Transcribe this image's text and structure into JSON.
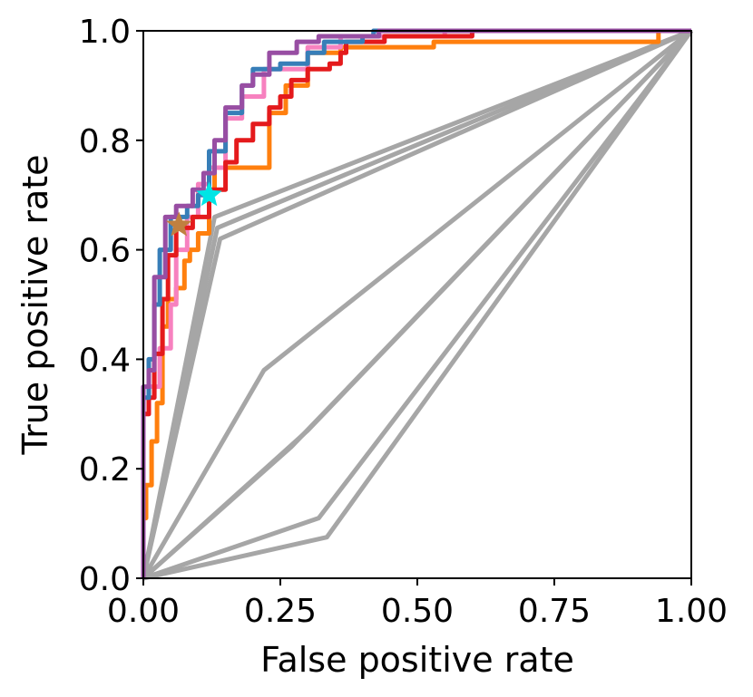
{
  "chart_data": {
    "type": "line",
    "title": "",
    "xlabel": "False positive rate",
    "ylabel": "True positive rate",
    "xlim": [
      0,
      1
    ],
    "ylim": [
      0,
      1
    ],
    "grid": false,
    "xticks": [
      0,
      0.25,
      0.5,
      0.75,
      1
    ],
    "xtick_labels": [
      "0.00",
      "0.25",
      "0.50",
      "0.75",
      "1.00"
    ],
    "yticks": [
      0,
      0.2,
      0.4,
      0.6,
      0.8,
      1
    ],
    "ytick_labels": [
      "0.0",
      "0.2",
      "0.4",
      "0.6",
      "0.8",
      "1.0"
    ],
    "series": [
      {
        "name": "gray-1",
        "color": "#a6a6a6",
        "x": [
          0,
          0.13,
          1
        ],
        "y": [
          0,
          0.66,
          1
        ]
      },
      {
        "name": "gray-2",
        "color": "#a6a6a6",
        "x": [
          0,
          0.135,
          1
        ],
        "y": [
          0,
          0.64,
          1
        ]
      },
      {
        "name": "gray-3",
        "color": "#a6a6a6",
        "x": [
          0,
          0.14,
          1
        ],
        "y": [
          0,
          0.62,
          1
        ]
      },
      {
        "name": "gray-4",
        "color": "#a6a6a6",
        "x": [
          0,
          0.22,
          1
        ],
        "y": [
          0,
          0.38,
          1
        ]
      },
      {
        "name": "gray-5",
        "color": "#a6a6a6",
        "x": [
          0,
          0.3,
          1
        ],
        "y": [
          0,
          0.27,
          1
        ]
      },
      {
        "name": "gray-6",
        "color": "#a6a6a6",
        "x": [
          0,
          0.27,
          1
        ],
        "y": [
          0,
          0.24,
          1
        ]
      },
      {
        "name": "gray-7",
        "color": "#a6a6a6",
        "x": [
          0,
          0.32,
          1
        ],
        "y": [
          0,
          0.11,
          1
        ]
      },
      {
        "name": "gray-8",
        "color": "#a6a6a6",
        "x": [
          0,
          0.335,
          1
        ],
        "y": [
          0,
          0.075,
          1
        ]
      },
      {
        "name": "orange",
        "color": "#ff7f0e",
        "x": [
          0,
          0,
          0.005,
          0.005,
          0.015,
          0.015,
          0.025,
          0.025,
          0.035,
          0.035,
          0.045,
          0.045,
          0.06,
          0.06,
          0.075,
          0.075,
          0.085,
          0.085,
          0.1,
          0.1,
          0.12,
          0.12,
          0.13,
          0.13,
          0.23,
          0.23,
          0.26,
          0.26,
          0.3,
          0.3,
          0.36,
          0.36,
          0.53,
          0.53,
          0.94,
          0.94,
          1
        ],
        "y": [
          0,
          0.11,
          0.11,
          0.17,
          0.17,
          0.25,
          0.25,
          0.32,
          0.32,
          0.46,
          0.46,
          0.51,
          0.51,
          0.53,
          0.53,
          0.58,
          0.58,
          0.6,
          0.6,
          0.63,
          0.63,
          0.71,
          0.71,
          0.75,
          0.75,
          0.85,
          0.85,
          0.9,
          0.9,
          0.96,
          0.96,
          0.97,
          0.97,
          0.98,
          0.98,
          1.0,
          1.0
        ]
      },
      {
        "name": "pink",
        "color": "#f781bf",
        "x": [
          0,
          0,
          0.01,
          0.01,
          0.03,
          0.03,
          0.05,
          0.05,
          0.06,
          0.06,
          0.08,
          0.08,
          0.1,
          0.1,
          0.12,
          0.12,
          0.15,
          0.15,
          0.18,
          0.18,
          0.22,
          0.22,
          0.3,
          0.3,
          0.36,
          0.36,
          0.55,
          0.55,
          1
        ],
        "y": [
          0,
          0.3,
          0.3,
          0.35,
          0.35,
          0.42,
          0.42,
          0.5,
          0.5,
          0.6,
          0.6,
          0.66,
          0.66,
          0.72,
          0.72,
          0.75,
          0.75,
          0.84,
          0.84,
          0.88,
          0.88,
          0.93,
          0.93,
          0.97,
          0.97,
          0.99,
          0.99,
          1.0,
          1.0
        ]
      },
      {
        "name": "red",
        "color": "#e41a1c",
        "x": [
          0,
          0,
          0.01,
          0.01,
          0.02,
          0.02,
          0.035,
          0.035,
          0.045,
          0.045,
          0.06,
          0.06,
          0.09,
          0.09,
          0.12,
          0.12,
          0.15,
          0.15,
          0.17,
          0.17,
          0.2,
          0.2,
          0.23,
          0.23,
          0.25,
          0.25,
          0.27,
          0.27,
          0.3,
          0.3,
          0.34,
          0.34,
          0.36,
          0.36,
          0.37,
          0.37,
          0.44,
          0.44,
          0.6,
          0.6,
          1
        ],
        "y": [
          0,
          0.3,
          0.3,
          0.33,
          0.33,
          0.41,
          0.41,
          0.51,
          0.51,
          0.59,
          0.59,
          0.64,
          0.64,
          0.66,
          0.66,
          0.71,
          0.71,
          0.76,
          0.76,
          0.8,
          0.8,
          0.83,
          0.83,
          0.86,
          0.86,
          0.88,
          0.88,
          0.91,
          0.91,
          0.93,
          0.93,
          0.94,
          0.94,
          0.96,
          0.96,
          0.98,
          0.98,
          0.99,
          0.99,
          1.0,
          1.0
        ]
      },
      {
        "name": "blue",
        "color": "#377eb8",
        "x": [
          0,
          0,
          0.01,
          0.01,
          0.02,
          0.02,
          0.03,
          0.03,
          0.05,
          0.05,
          0.08,
          0.08,
          0.1,
          0.1,
          0.12,
          0.12,
          0.15,
          0.15,
          0.18,
          0.18,
          0.2,
          0.2,
          0.25,
          0.25,
          0.3,
          0.3,
          0.33,
          0.33,
          0.4,
          0.4,
          0.42,
          0.42,
          1
        ],
        "y": [
          0,
          0.33,
          0.33,
          0.4,
          0.4,
          0.5,
          0.5,
          0.6,
          0.6,
          0.66,
          0.66,
          0.68,
          0.68,
          0.7,
          0.7,
          0.78,
          0.78,
          0.85,
          0.85,
          0.9,
          0.9,
          0.93,
          0.93,
          0.94,
          0.94,
          0.96,
          0.96,
          0.98,
          0.98,
          0.99,
          0.99,
          1.0,
          1.0
        ]
      },
      {
        "name": "purple",
        "color": "#984ea3",
        "x": [
          0,
          0,
          0.01,
          0.01,
          0.02,
          0.02,
          0.04,
          0.04,
          0.06,
          0.06,
          0.09,
          0.09,
          0.11,
          0.11,
          0.13,
          0.13,
          0.15,
          0.15,
          0.18,
          0.18,
          0.2,
          0.2,
          0.23,
          0.23,
          0.28,
          0.28,
          0.32,
          0.32,
          0.43,
          0.43,
          0.6,
          0.6,
          1
        ],
        "y": [
          0,
          0.35,
          0.35,
          0.38,
          0.38,
          0.55,
          0.55,
          0.66,
          0.66,
          0.68,
          0.68,
          0.71,
          0.71,
          0.74,
          0.74,
          0.8,
          0.8,
          0.86,
          0.86,
          0.9,
          0.9,
          0.92,
          0.92,
          0.96,
          0.96,
          0.98,
          0.98,
          0.99,
          0.99,
          1.0,
          1.0,
          1.0,
          1.0
        ]
      }
    ],
    "markers": [
      {
        "name": "brown-star",
        "color": "#c08040",
        "x": 0.065,
        "y": 0.645
      },
      {
        "name": "cyan-star",
        "color": "#00e5e5",
        "x": 0.12,
        "y": 0.7
      }
    ]
  }
}
